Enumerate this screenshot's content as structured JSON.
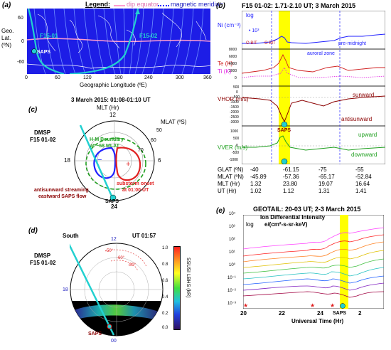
{
  "panel_a": {
    "label": "(a)",
    "legend_title": "Legend:",
    "legend_dip": "dip equator",
    "legend_mag": "magnetic meridian",
    "ylabel": "Geo. Lat. (ºN)",
    "xlabel": "Geographic Longitude (ºE)",
    "xticks": [
      "0",
      "60",
      "120",
      "180",
      "240",
      "300",
      "360"
    ],
    "yticks": [
      "60",
      "0",
      "-60"
    ],
    "track1": "F15-01",
    "track2": "F15-02",
    "saps": "SAPS",
    "colors": {
      "bg": "#1d1de6",
      "meridian": "#6f8cff",
      "track": "#22d0d0",
      "dip": "#ff9ccf"
    }
  },
  "panel_b": {
    "label": "(b)",
    "title": "F15 01-02: 1.71-2.10 UT; 3 March 2015",
    "ni_label": "Ni (cm⁻³)",
    "ni_log": "log",
    "ni_scale": "• 10³",
    "obit1": "O BIT",
    "obit2": "O BIT",
    "premidnight": "pre-midnight",
    "auroral": "auroral zone",
    "te_label": "Te (K)",
    "ti_label": "Ti (K)",
    "te_ticks": [
      "8000",
      "6000",
      "4000",
      "2000",
      "0"
    ],
    "vhor_label": "VHOR (m/s)",
    "vhor_ticks": [
      "500",
      "0",
      "-500",
      "-1000",
      "-1500",
      "-2000",
      "-2500",
      "-3000"
    ],
    "sunward": "sunward",
    "antisunward": "antisunward",
    "saps": "SAPS",
    "vver_label": "VVER (m/s)",
    "vver_ticks": [
      "1000",
      "500",
      "0",
      "-500",
      "-1000"
    ],
    "upward": "upward",
    "downward": "downward",
    "table": [
      [
        "GLAT (ºN)",
        "-40",
        "-61.15",
        "-75",
        "-55"
      ],
      [
        "MLAT (ºN)",
        "-45.89",
        "-57.36",
        "-65.17",
        "-52.84"
      ],
      [
        "MLT (Hr)",
        "1.32",
        "23.80",
        "19.07",
        "16.64"
      ],
      [
        "UT (Hr)",
        "1.02",
        "1.12",
        "1.31",
        "1.41"
      ]
    ]
  },
  "panel_c": {
    "label": "(c)",
    "time": "3 March 2015: 01:08-01:10 UT",
    "mlt": "MLT (Hr)",
    "mlt12": "12",
    "mlat": "MLAT (ºS)",
    "r50": "50",
    "r60": "60",
    "r70": "70",
    "mlt18": "18",
    "mlt6": "6",
    "mlt24": "24",
    "hm1": "H-M Boundary",
    "hm2": "at ~68 MLAT",
    "dmsp1": "DMSP",
    "dmsp2": "F15 01-02",
    "substorm1": "substorm onset",
    "substorm2": "at 01:00 UT",
    "anti1": "antisunward streaming",
    "anti2": "eastward SAPS flow",
    "saps": "SAPS"
  },
  "panel_d": {
    "label": "(d)",
    "south": "South",
    "ut": "UT 01:57",
    "l12": "12",
    "l18": "18",
    "l00": "00",
    "c50": "-50°",
    "c60": "-60°",
    "c80": "-80°",
    "dmsp1": "DMSP",
    "dmsp2": "F15 01-02",
    "saps": "SAPS",
    "cbar_label": "SSUSI LBHS (kR)",
    "cbar_ticks": [
      "1.0",
      "0.8",
      "0.6",
      "0.4",
      "0.2",
      "0.0"
    ]
  },
  "panel_e": {
    "label": "(e)",
    "title": "GEOTAIL: 20-03 UT; 2-3 March 2015",
    "log": "log",
    "il1": "Ion Differential Intensity",
    "il2": "e/(cm²-s-sr-keV)",
    "xlabel": "Universal Time (Hr)",
    "xticks": [
      "20",
      "22",
      "24",
      "2"
    ],
    "yticks": [
      "10⁴",
      "10³",
      "10²",
      "10¹",
      "10⁰",
      "10⁻¹",
      "10⁻²",
      "10⁻³"
    ],
    "saps": "SAPS"
  }
}
